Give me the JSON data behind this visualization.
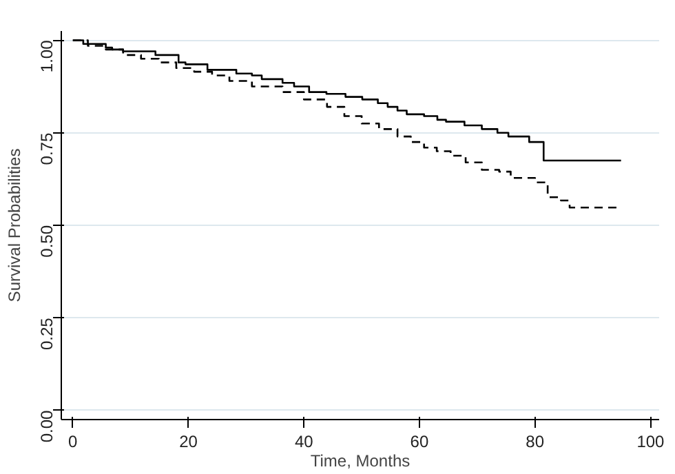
{
  "chart_data": {
    "type": "step",
    "xlabel": "Time, Months",
    "ylabel": "Survival Probabilities",
    "xlim": [
      -2,
      101.5
    ],
    "ylim": [
      -0.025,
      1.025
    ],
    "xticks": [
      0,
      20,
      40,
      60,
      80,
      100
    ],
    "yticks": [
      {
        "value": 0,
        "label": "0.00"
      },
      {
        "value": 0.25,
        "label": "0.25"
      },
      {
        "value": 0.5,
        "label": "0.50"
      },
      {
        "value": 0.75,
        "label": "0.75"
      },
      {
        "value": 1,
        "label": "1.00"
      }
    ],
    "grid": "y",
    "series": [
      {
        "color": "#000000",
        "line_style": "solid",
        "x": [
          0,
          1.8,
          5.7,
          6.8,
          8.7,
          14.3,
          18.3,
          19.5,
          23.3,
          28.3,
          31,
          32.7,
          36.3,
          38.3,
          40.9,
          43.9,
          47.2,
          50.1,
          52.8,
          54.5,
          56.2,
          57.8,
          60.8,
          63.1,
          64.6,
          67.8,
          70.8,
          73.5,
          75.4,
          79,
          81.5,
          94.9
        ],
        "values": [
          1,
          0.99,
          0.98,
          0.975,
          0.97,
          0.96,
          0.94,
          0.935,
          0.92,
          0.91,
          0.905,
          0.895,
          0.885,
          0.875,
          0.86,
          0.855,
          0.847,
          0.84,
          0.83,
          0.82,
          0.81,
          0.8,
          0.795,
          0.785,
          0.78,
          0.77,
          0.76,
          0.75,
          0.74,
          0.725,
          0.675,
          0.675
        ]
      },
      {
        "color": "#000000",
        "line_style": "dashed",
        "x": [
          0,
          2.6,
          5.7,
          8.7,
          11.8,
          14.9,
          17.9,
          21,
          24.1,
          27.1,
          31,
          36.3,
          40,
          44,
          47,
          50,
          53,
          56.2,
          58.5,
          60.8,
          63,
          65.4,
          68,
          70.8,
          73.8,
          75.8,
          80,
          82.2,
          84.5,
          86,
          94.1
        ],
        "values": [
          1,
          0.985,
          0.975,
          0.96,
          0.95,
          0.94,
          0.925,
          0.915,
          0.905,
          0.89,
          0.875,
          0.86,
          0.84,
          0.82,
          0.795,
          0.775,
          0.76,
          0.74,
          0.725,
          0.71,
          0.7,
          0.688,
          0.67,
          0.65,
          0.645,
          0.628,
          0.616,
          0.576,
          0.567,
          0.548,
          0.548
        ]
      }
    ]
  }
}
